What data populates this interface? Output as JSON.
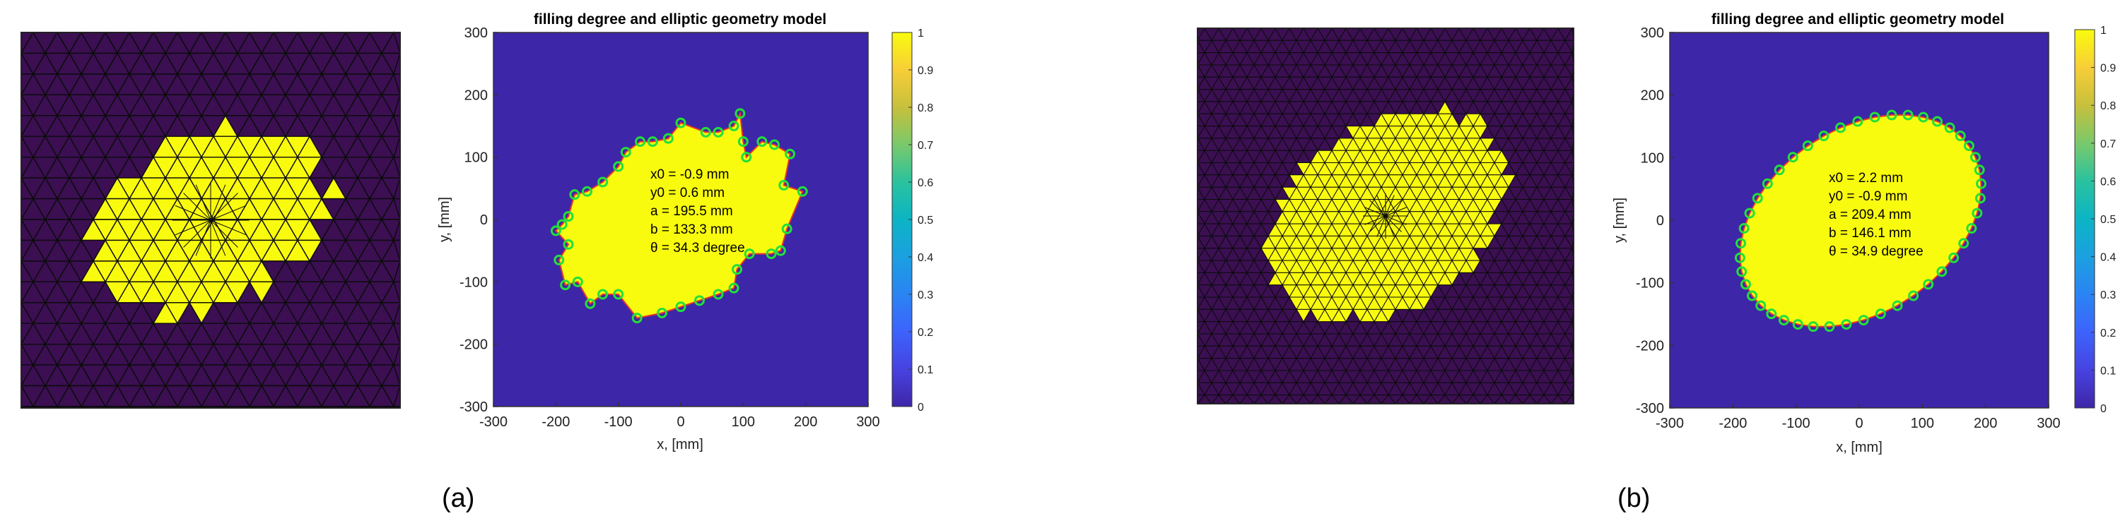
{
  "panels": [
    {
      "caption": "(a)",
      "annotations": [
        "x0 = -0.9 mm",
        "y0 = 0.6 mm",
        "a = 195.5 mm",
        "b = 133.3 mm",
        "θ = 34.3 degree"
      ]
    },
    {
      "caption": "(b)",
      "annotations": [
        "x0 = 2.2 mm",
        "y0 = -0.9 mm",
        "a = 209.4 mm",
        "b = 146.1 mm",
        "θ = 34.9 degree"
      ]
    }
  ],
  "colors": {
    "background": "#3d26a8",
    "filled": "#f9fb0e",
    "mesh_bg": "#3b0f52",
    "mesh_line": "#0b0b0b",
    "boundary": "#e8342a",
    "marker": "#22e03a"
  },
  "chart_data": [
    {
      "type": "heatmap",
      "title": "filling degree and elliptic geometry model",
      "xlabel": "x, [mm]",
      "ylabel": "y, [mm]",
      "xlim": [
        -300,
        300
      ],
      "ylim": [
        -300,
        300
      ],
      "xticks": [
        "-300",
        "-200",
        "-100",
        "0",
        "100",
        "200",
        "300"
      ],
      "yticks": [
        "300",
        "200",
        "100",
        "0",
        "-100",
        "-200",
        "-300"
      ],
      "colorbar": {
        "range": [
          0,
          1
        ],
        "ticks": [
          "1",
          "0.9",
          "0.8",
          "0.7",
          "0.6",
          "0.5",
          "0.4",
          "0.3",
          "0.2",
          "0.1",
          "0"
        ]
      },
      "ellipse": {
        "x0": -0.9,
        "y0": 0.6,
        "a": 195.5,
        "b": 133.3,
        "theta_deg": 34.3
      },
      "boundary_points": [
        [
          -200,
          -18
        ],
        [
          -180,
          -40
        ],
        [
          -195,
          -65
        ],
        [
          -185,
          -105
        ],
        [
          -165,
          -100
        ],
        [
          -145,
          -135
        ],
        [
          -125,
          -120
        ],
        [
          -100,
          -120
        ],
        [
          -70,
          -158
        ],
        [
          -30,
          -150
        ],
        [
          0,
          -140
        ],
        [
          30,
          -130
        ],
        [
          60,
          -120
        ],
        [
          85,
          -110
        ],
        [
          90,
          -80
        ],
        [
          110,
          -55
        ],
        [
          145,
          -55
        ],
        [
          160,
          -50
        ],
        [
          170,
          -15
        ],
        [
          195,
          45
        ],
        [
          165,
          55
        ],
        [
          175,
          105
        ],
        [
          150,
          120
        ],
        [
          130,
          125
        ],
        [
          105,
          100
        ],
        [
          100,
          125
        ],
        [
          95,
          170
        ],
        [
          85,
          150
        ],
        [
          60,
          140
        ],
        [
          40,
          140
        ],
        [
          0,
          155
        ],
        [
          -20,
          130
        ],
        [
          -45,
          125
        ],
        [
          -65,
          125
        ],
        [
          -88,
          108
        ],
        [
          -100,
          85
        ],
        [
          -125,
          60
        ],
        [
          -150,
          45
        ],
        [
          -170,
          40
        ],
        [
          -180,
          5
        ],
        [
          -190,
          -8
        ]
      ]
    },
    {
      "type": "heatmap",
      "title": "filling degree and elliptic geometry model",
      "xlabel": "x, [mm]",
      "ylabel": "y, [mm]",
      "xlim": [
        -300,
        300
      ],
      "ylim": [
        -300,
        300
      ],
      "xticks": [
        "-300",
        "-200",
        "-100",
        "0",
        "100",
        "200",
        "300"
      ],
      "yticks": [
        "300",
        "200",
        "100",
        "0",
        "-100",
        "-200",
        "-300"
      ],
      "colorbar": {
        "range": [
          0,
          1
        ],
        "ticks": [
          "1",
          "0.9",
          "0.8",
          "0.7",
          "0.6",
          "0.5",
          "0.4",
          "0.3",
          "0.2",
          "0.1",
          "0"
        ]
      },
      "ellipse": {
        "x0": 2.2,
        "y0": -0.9,
        "a": 209.4,
        "b": 146.1,
        "theta_deg": 34.9
      }
    }
  ]
}
